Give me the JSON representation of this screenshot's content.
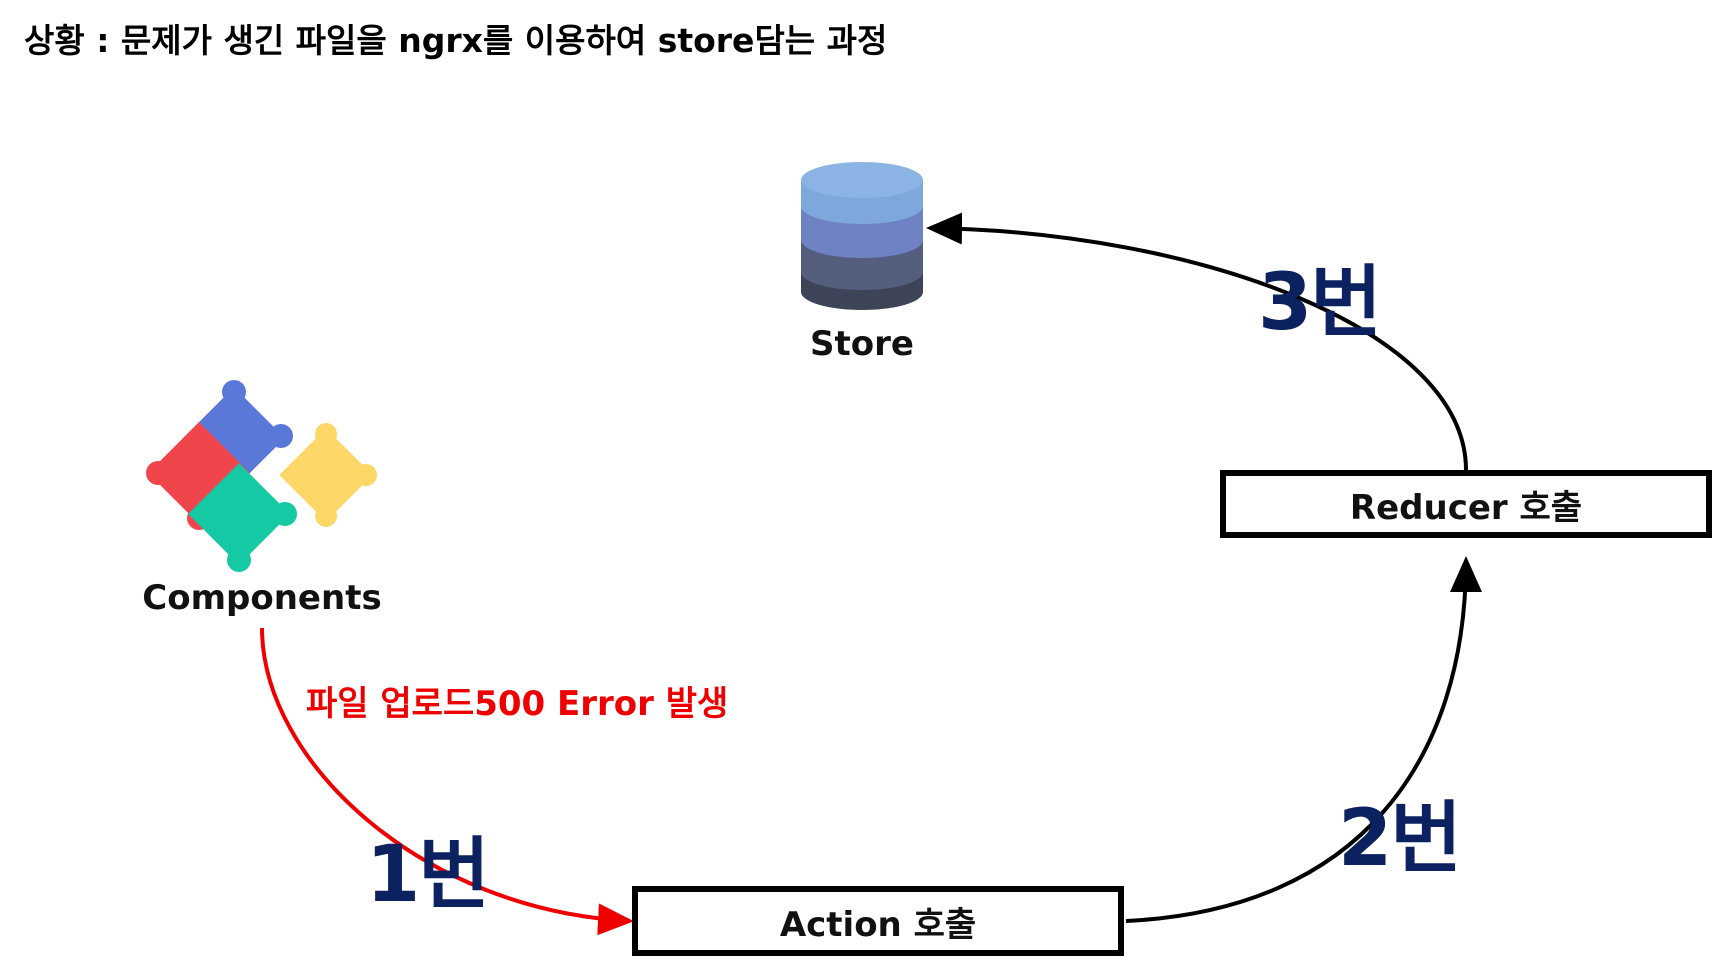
{
  "title": "상황 : 문제가 생긴 파일을 ngrx를 이용하여 store담는 과정",
  "nodes": {
    "store": {
      "label": "Store",
      "icon": "database-icon"
    },
    "components": {
      "label": "Components",
      "icon": "puzzle-icon"
    },
    "action": {
      "label": "Action 호출"
    },
    "reducer": {
      "label": "Reducer 호출"
    }
  },
  "edges": {
    "components_to_action": {
      "annotation": "파일 업로드500 Error 발생",
      "step": "1번",
      "color": "#ee0000"
    },
    "action_to_reducer": {
      "step": "2번",
      "color": "#000000"
    },
    "reducer_to_store": {
      "step": "3번",
      "color": "#000000"
    }
  },
  "colors": {
    "step_label": "#0b2160",
    "error_text": "#ee0000",
    "db_top": "#7ea8dc",
    "db_mid1": "#6e82c4",
    "db_mid2": "#545f7e",
    "db_bottom": "#3d4457",
    "puzzle_blue": "#5a78d8",
    "puzzle_red": "#f0464b",
    "puzzle_teal": "#14c9a4",
    "puzzle_yellow": "#fdd868"
  }
}
